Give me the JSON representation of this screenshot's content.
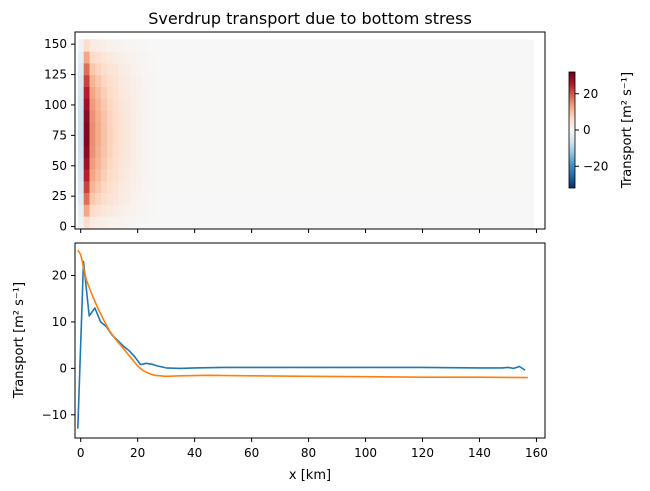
{
  "chart_data": [
    {
      "type": "heatmap",
      "title": "Sverdrup transport due to bottom stress",
      "xlabel": "",
      "ylabel": "",
      "xlim": [
        -2,
        160
      ],
      "ylim": [
        -2,
        160
      ],
      "x_ticks": [],
      "y_ticks": [
        0,
        25,
        50,
        75,
        100,
        125,
        150
      ],
      "data_extent": {
        "x": [
          -1,
          156
        ],
        "y": [
          -1,
          154
        ]
      },
      "colormap": "RdBu_r",
      "colorbar": {
        "label": "Transport [m² s⁻¹]",
        "range": [
          -32,
          32
        ],
        "ticks": [
          -20,
          0,
          20
        ]
      },
      "columns": [
        {
          "x": [
            -1,
            1
          ],
          "value": -7
        },
        {
          "x": [
            1,
            3
          ],
          "value": 30
        },
        {
          "x": [
            3,
            5
          ],
          "value": 15
        },
        {
          "x": [
            5,
            7
          ],
          "value": 12
        },
        {
          "x": [
            7,
            9
          ],
          "value": 9.5
        },
        {
          "x": [
            9,
            11
          ],
          "value": 7.5
        },
        {
          "x": [
            11,
            13
          ],
          "value": 6
        },
        {
          "x": [
            13,
            15
          ],
          "value": 4.5
        },
        {
          "x": [
            15,
            17
          ],
          "value": 3.5
        },
        {
          "x": [
            17,
            19
          ],
          "value": 2.5
        },
        {
          "x": [
            19,
            21
          ],
          "value": 1.6
        },
        {
          "x": [
            21,
            23
          ],
          "value": 1
        },
        {
          "x": [
            23,
            26
          ],
          "value": 0.5
        },
        {
          "x": [
            26,
            156
          ],
          "value": 0.1
        }
      ]
    },
    {
      "type": "line",
      "xlabel": "x [km]",
      "ylabel": "Transport [m² s⁻¹]",
      "xlim": [
        -2,
        163
      ],
      "ylim": [
        -15,
        27
      ],
      "x_ticks": [
        0,
        20,
        40,
        60,
        80,
        100,
        120,
        140,
        160
      ],
      "y_ticks": [
        -10,
        0,
        10,
        20
      ],
      "series": [
        {
          "color": "#1f77b4",
          "x": [
            -1,
            1,
            3,
            5,
            7,
            9,
            11,
            13,
            15,
            17,
            19,
            21,
            23,
            25,
            27,
            30,
            35,
            40,
            50,
            60,
            80,
            100,
            120,
            140,
            148,
            150,
            152,
            154,
            156
          ],
          "y": [
            -13,
            23,
            11.3,
            13,
            10,
            9,
            7.2,
            6,
            4.8,
            3.8,
            2.5,
            0.8,
            1.1,
            0.9,
            0.5,
            0.1,
            0,
            0.1,
            0.2,
            0.2,
            0.2,
            0.2,
            0.2,
            0.1,
            0.1,
            0.2,
            0,
            0.4,
            -0.4
          ]
        },
        {
          "color": "#ff7f0e",
          "x": [
            -1,
            0,
            2,
            4,
            6,
            8,
            10,
            12,
            14,
            16,
            18,
            20,
            22,
            24,
            26,
            28,
            30,
            35,
            45,
            60,
            80,
            100,
            120,
            140,
            157
          ],
          "y": [
            25.5,
            24.5,
            19,
            15.8,
            13,
            10.5,
            8.2,
            6.5,
            5,
            3.5,
            2,
            0.5,
            -0.5,
            -1.1,
            -1.5,
            -1.6,
            -1.7,
            -1.6,
            -1.5,
            -1.6,
            -1.7,
            -1.8,
            -1.9,
            -1.9,
            -2
          ]
        }
      ]
    }
  ]
}
